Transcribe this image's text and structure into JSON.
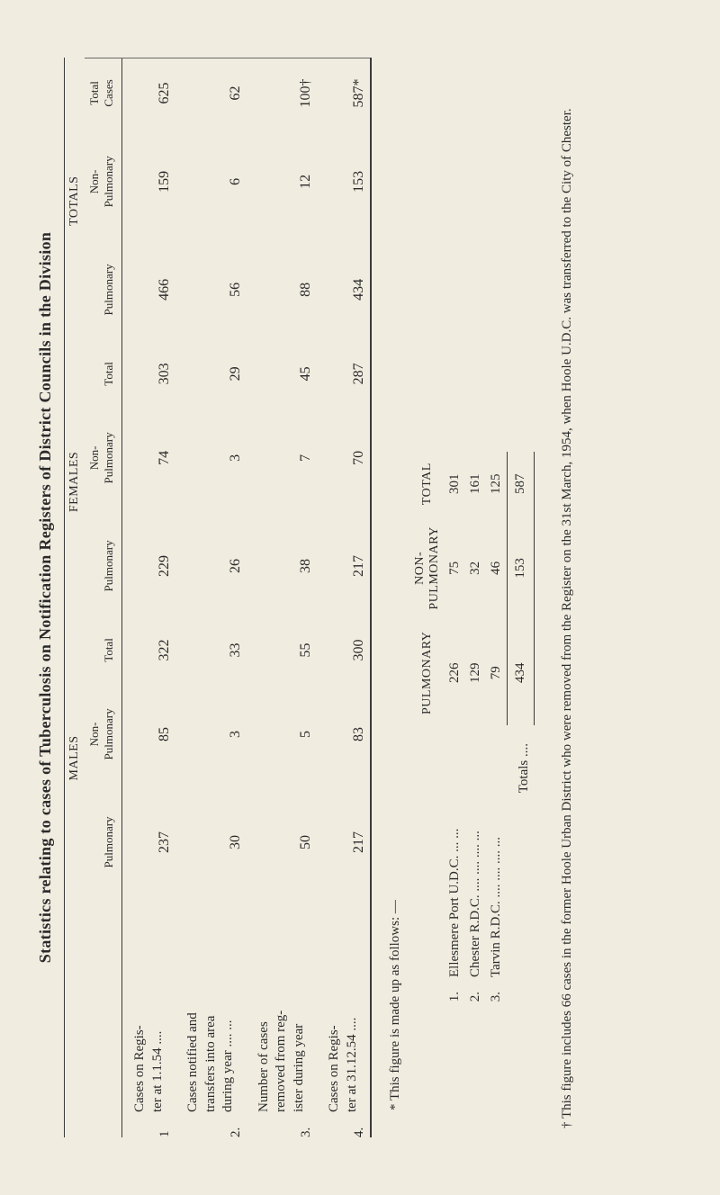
{
  "title": "Statistics relating to cases of Tuberculosis on Notification Registers of District Councils in the Division",
  "groupHeaders": {
    "males": "MALES",
    "females": "FEMALES",
    "totals": "TOTALS"
  },
  "subHeaders": {
    "pulmonary": "Pulmonary",
    "nonPulmonary": "Non-\nPulmonary",
    "total": "Total",
    "totalCases": "Total\nCases"
  },
  "rows": [
    {
      "idx": "1",
      "label": "Cases on Regis-\nter at 1.1.54 ....",
      "m_p": "237",
      "m_np": "85",
      "m_t": "322",
      "f_p": "229",
      "f_np": "74",
      "f_t": "303",
      "t_p": "466",
      "t_np": "159",
      "t_c": "625"
    },
    {
      "idx": "2.",
      "label": "Cases notified and\ntransfers into area\nduring year ....  ...",
      "m_p": "30",
      "m_np": "3",
      "m_t": "33",
      "f_p": "26",
      "f_np": "3",
      "f_t": "29",
      "t_p": "56",
      "t_np": "6",
      "t_c": "62"
    },
    {
      "idx": "3.",
      "label": "Number of cases\nremoved from reg-\nister during year",
      "m_p": "50",
      "m_np": "5",
      "m_t": "55",
      "f_p": "38",
      "f_np": "7",
      "f_t": "45",
      "t_p": "88",
      "t_np": "12",
      "t_c": "100†"
    },
    {
      "idx": "4.",
      "label": "Cases on Regis-\nter at 31.12.54  ....",
      "m_p": "217",
      "m_np": "83",
      "m_t": "300",
      "f_p": "217",
      "f_np": "70",
      "f_t": "287",
      "t_p": "434",
      "t_np": "153",
      "t_c": "587*"
    }
  ],
  "subIntro": "* This figure is made up as follows: —",
  "subHead": {
    "pulmonary": "PULMONARY",
    "nonPulmonary": "NON-\nPULMONARY",
    "total": "TOTAL"
  },
  "subRows": [
    {
      "idx": "1.",
      "name": "Ellesmere Port U.D.C.  ...  ...",
      "p": "226",
      "np": "75",
      "t": "301"
    },
    {
      "idx": "2.",
      "name": "Chester R.D.C. ....  ....  ....  ...",
      "p": "129",
      "np": "32",
      "t": "161"
    },
    {
      "idx": "3.",
      "name": "Tarvin  R.D.C. ....  ....  ....  ...",
      "p": "79",
      "np": "46",
      "t": "125"
    }
  ],
  "subTotals": {
    "label": "Totals ....",
    "p": "434",
    "np": "153",
    "t": "587"
  },
  "footnote": "† This figure includes 66 cases in the former Hoole Urban District who were removed from the Register on the 31st March, 1954, when Hoole U.D.C. was transferred to the City of Chester.",
  "colors": {
    "pageBg": "#f0ece0",
    "text": "#2a2a2a",
    "rule": "#3a3a3a"
  },
  "fontSizes": {
    "title": 18,
    "body": 15,
    "header": 14
  }
}
